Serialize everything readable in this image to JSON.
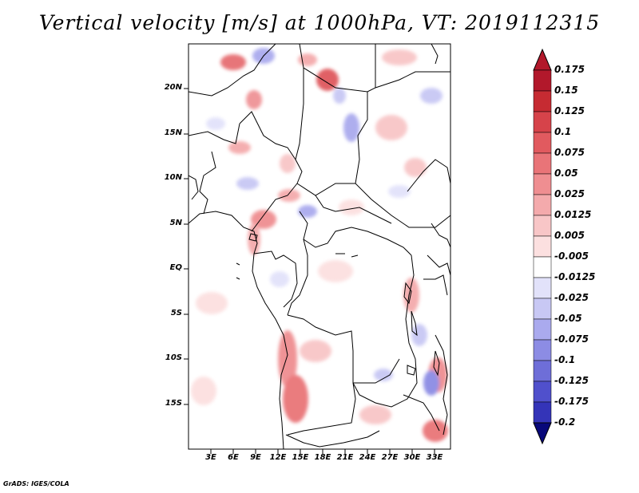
{
  "title": "Vertical velocity [m/s] at 1000hPa, VT: 2019112315",
  "latitude_labels": [
    "20N",
    "15N",
    "10N",
    "5N",
    "EQ",
    "5S",
    "10S",
    "15S"
  ],
  "longitude_labels": [
    "3E",
    "6E",
    "9E",
    "12E",
    "15E",
    "18E",
    "21E",
    "24E",
    "27E",
    "30E",
    "33E"
  ],
  "colorbar": {
    "labels": [
      "0.175",
      "0.15",
      "0.125",
      "0.1",
      "0.075",
      "0.05",
      "0.025",
      "0.0125",
      "0.005",
      "-0.005",
      "-0.0125",
      "-0.025",
      "-0.05",
      "-0.075",
      "-0.1",
      "-0.125",
      "-0.175",
      "-0.2"
    ],
    "colors": [
      "#b2182b",
      "#c62b32",
      "#d6434a",
      "#e15a5f",
      "#e97478",
      "#ef8e91",
      "#f4aaac",
      "#f8c6c7",
      "#fce0e0",
      "#ffffff",
      "#e2e2fa",
      "#c8c8f4",
      "#aaaaee",
      "#8c8ce4",
      "#6e6ed8",
      "#5050cc",
      "#3434b8",
      "#1a1aa0",
      "#08087a"
    ]
  },
  "credit": "GrADS: IGES/COLA"
}
